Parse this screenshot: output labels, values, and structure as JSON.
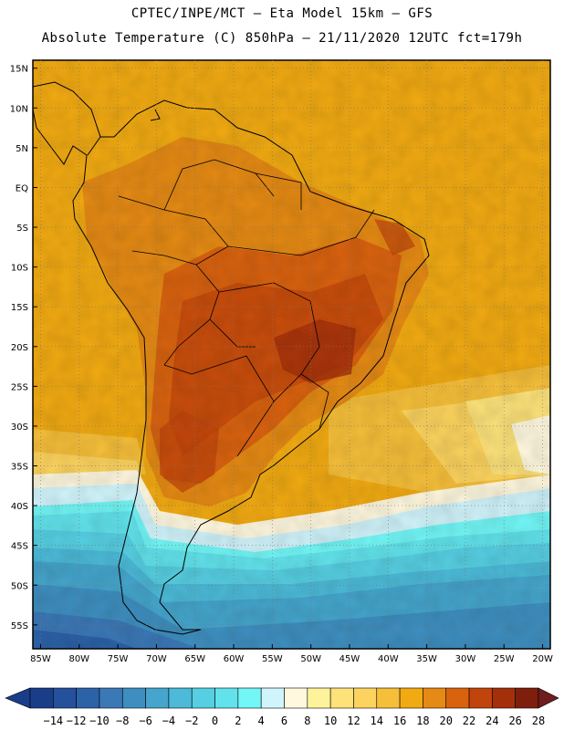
{
  "header": {
    "line1": "CPTEC/INPE/MCT –  Eta Model 15km – GFS",
    "line2": "Absolute Temperature (C) 850hPa – 21/11/2020 12UTC fct=179h"
  },
  "map": {
    "lat_labels": [
      "15N",
      "10N",
      "5N",
      "EQ",
      "5S",
      "10S",
      "15S",
      "20S",
      "25S",
      "30S",
      "35S",
      "40S",
      "45S",
      "50S",
      "55S"
    ],
    "lat_values": [
      15,
      10,
      5,
      0,
      -5,
      -10,
      -15,
      -20,
      -25,
      -30,
      -35,
      -40,
      -45,
      -50,
      -55
    ],
    "lon_labels": [
      "85W",
      "80W",
      "75W",
      "70W",
      "65W",
      "60W",
      "55W",
      "50W",
      "45W",
      "40W",
      "35W",
      "30W",
      "25W",
      "20W"
    ],
    "lon_values": [
      -85,
      -80,
      -75,
      -70,
      -65,
      -60,
      -55,
      -50,
      -45,
      -40,
      -35,
      -30,
      -25,
      -20
    ],
    "lon_range": [
      -86,
      -19
    ],
    "lat_range": [
      -58,
      16
    ],
    "grid": "dotted"
  },
  "colorbar": {
    "labels": [
      "-14",
      "-12",
      "-10",
      "-8",
      "-6",
      "-4",
      "-2",
      "0",
      "2",
      "4",
      "6",
      "8",
      "10",
      "12",
      "14",
      "16",
      "18",
      "20",
      "22",
      "24",
      "26",
      "28"
    ],
    "colors": [
      "#1a3d8a",
      "#25509c",
      "#2c62a8",
      "#3b78b6",
      "#3e8fc0",
      "#45a5cc",
      "#4cbad8",
      "#56cfe2",
      "#62e3ec",
      "#72f6f6",
      "#d0f4fb",
      "#fff8de",
      "#fef39a",
      "#fde27a",
      "#fcd35e",
      "#f6bf3a",
      "#f1aa12",
      "#e58a14",
      "#d9620f",
      "#c1440c",
      "#a3300b",
      "#7d1f0c",
      "#6e1e1e"
    ]
  }
}
